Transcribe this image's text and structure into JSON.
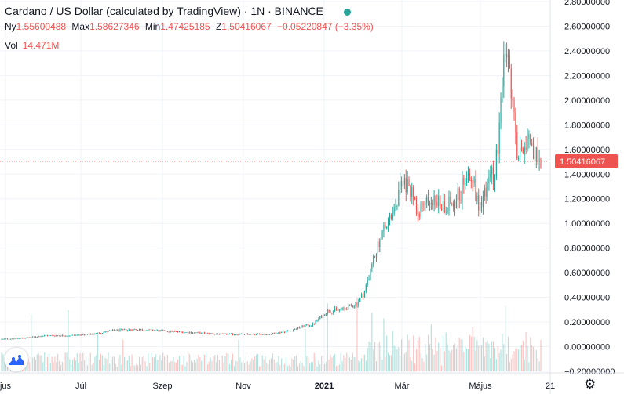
{
  "header": {
    "title": "Cardano / US Dollar (calculated by TradingView) · 1N · BINANCE",
    "status_color": "#26a69a"
  },
  "ohlc": {
    "open_label": "Ny",
    "open": "1.55600488",
    "high_label": "Max",
    "high": "1.58627346",
    "low_label": "Min",
    "low": "1.47425185",
    "close_label": "Z",
    "close": "1.50416067",
    "change": "−0.05220847 (−3.35%)"
  },
  "volume": {
    "label": "Vol",
    "value": "14.471M"
  },
  "colors": {
    "up": "#26a69a",
    "down": "#ef5350",
    "grid": "#f0f3fa",
    "axis_text": "#131722"
  },
  "icons": {
    "logo": "tradingview-logo-icon",
    "settings": "gear-icon"
  },
  "chart_data": {
    "type": "candlestick",
    "symbol": "ADAUSD",
    "exchange": "BINANCE",
    "interval": "1N",
    "ylim": [
      -0.2,
      2.8
    ],
    "y_ticks": [
      "2.80000000",
      "2.60000000",
      "2.40000000",
      "2.20000000",
      "2.00000000",
      "1.80000000",
      "1.60000000",
      "1.40000000",
      "1.20000000",
      "1.00000000",
      "0.80000000",
      "0.60000000",
      "0.40000000",
      "0.20000000",
      "0.00000000",
      "−0.20000000"
    ],
    "x_ticks": [
      "jus",
      "Júl",
      "Szep",
      "Nov",
      "2021",
      "Már",
      "Május",
      "21"
    ],
    "last_price": "1.50416067",
    "price_anchors": [
      [
        0,
        0.06
      ],
      [
        15,
        0.07
      ],
      [
        30,
        0.09
      ],
      [
        45,
        0.09
      ],
      [
        60,
        0.1
      ],
      [
        75,
        0.13
      ],
      [
        90,
        0.14
      ],
      [
        105,
        0.13
      ],
      [
        120,
        0.12
      ],
      [
        135,
        0.11
      ],
      [
        150,
        0.1
      ],
      [
        165,
        0.1
      ],
      [
        180,
        0.1
      ],
      [
        195,
        0.13
      ],
      [
        205,
        0.17
      ],
      [
        210,
        0.18
      ],
      [
        220,
        0.29
      ],
      [
        230,
        0.3
      ],
      [
        240,
        0.35
      ],
      [
        245,
        0.45
      ],
      [
        252,
        0.75
      ],
      [
        258,
        0.95
      ],
      [
        265,
        1.08
      ],
      [
        270,
        1.35
      ],
      [
        275,
        1.28
      ],
      [
        282,
        1.12
      ],
      [
        290,
        1.2
      ],
      [
        298,
        1.15
      ],
      [
        305,
        1.18
      ],
      [
        310,
        1.25
      ],
      [
        315,
        1.48
      ],
      [
        318,
        1.35
      ],
      [
        322,
        1.15
      ],
      [
        328,
        1.3
      ],
      [
        333,
        1.45
      ],
      [
        336,
        1.75
      ],
      [
        340,
        2.4
      ],
      [
        343,
        2.2
      ],
      [
        348,
        1.55
      ],
      [
        352,
        1.65
      ],
      [
        356,
        1.75
      ],
      [
        360,
        1.55
      ],
      [
        364,
        1.52
      ]
    ],
    "volume_spikes": [
      [
        20,
        0.48
      ],
      [
        45,
        0.52
      ],
      [
        65,
        0.33
      ],
      [
        82,
        0.27
      ],
      [
        160,
        0.27
      ],
      [
        205,
        0.36
      ],
      [
        220,
        0.58
      ],
      [
        240,
        0.63
      ],
      [
        250,
        0.5
      ],
      [
        258,
        0.45
      ],
      [
        290,
        0.4
      ],
      [
        300,
        0.33
      ],
      [
        318,
        0.38
      ],
      [
        340,
        0.55
      ]
    ]
  }
}
